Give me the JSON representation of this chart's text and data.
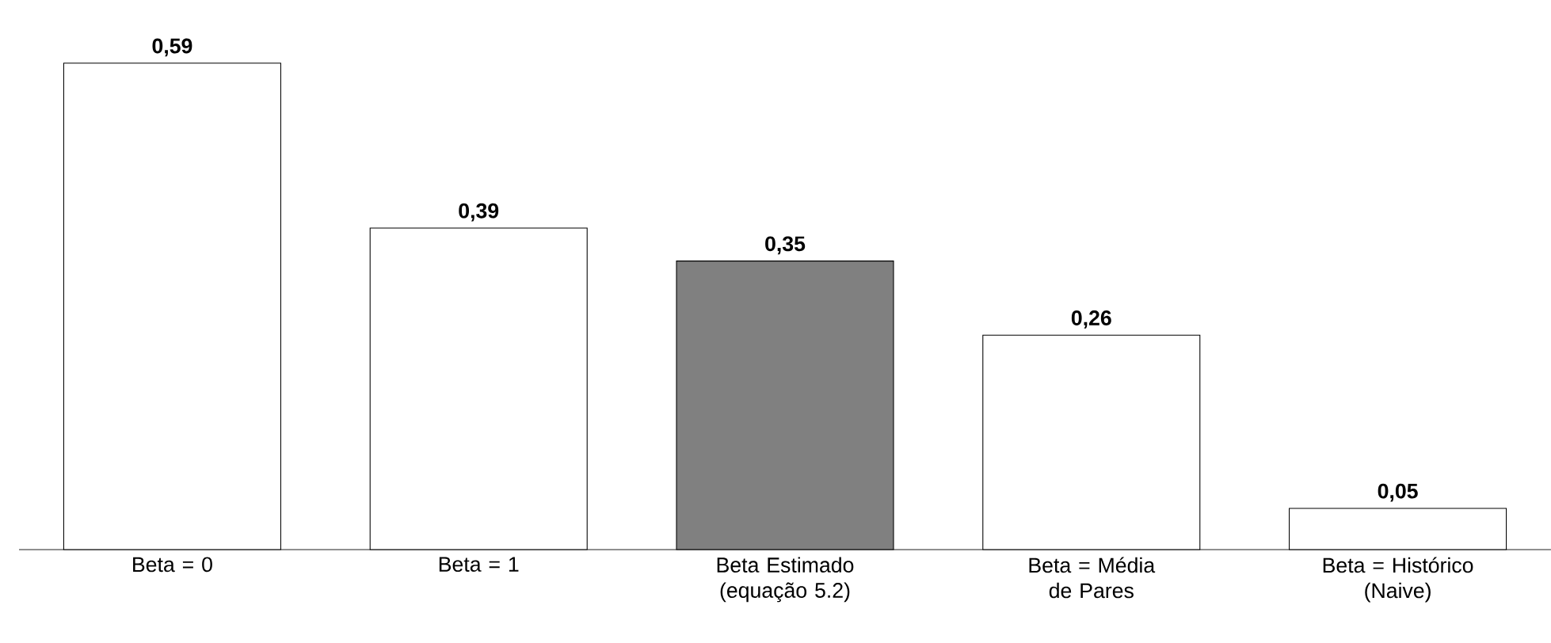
{
  "chart_data": {
    "type": "bar",
    "categories": [
      "Beta = 0",
      "Beta = 1",
      "Beta Estimado (equação 5.2)",
      "Beta = Média de Pares",
      "Beta = Histórico (Naive)"
    ],
    "values": [
      0.59,
      0.39,
      0.35,
      0.26,
      0.05
    ],
    "colors": [
      "#ffffff",
      "#ffffff",
      "#808080",
      "#ffffff",
      "#ffffff"
    ],
    "value_labels": [
      "0,59",
      "0,39",
      "0,35",
      "0,26",
      "0,05"
    ],
    "grid": false
  }
}
